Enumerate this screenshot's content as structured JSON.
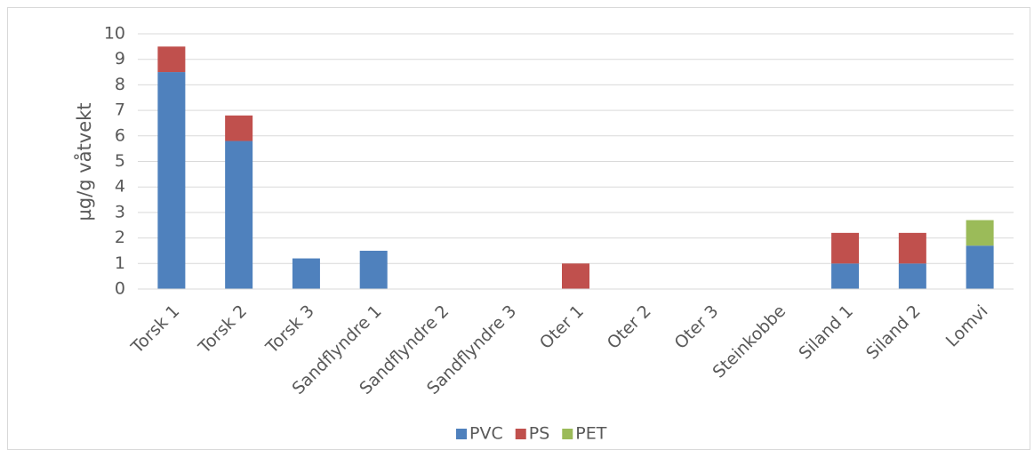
{
  "chart_data": {
    "type": "stacked_bar",
    "y_label": "µg/g våtvekt",
    "categories": [
      "Torsk 1",
      "Torsk 2",
      "Torsk 3",
      "Sandflyndre 1",
      "Sandflyndre 2",
      "Sandflyndre 3",
      "Oter 1",
      "Oter 2",
      "Oter 3",
      "Steinkobbe",
      "Siland 1",
      "Siland 2",
      "Lomvi"
    ],
    "series": [
      {
        "name": "PVC",
        "color": "#4f81bd",
        "values": [
          8.5,
          5.8,
          1.2,
          1.5,
          0,
          0,
          0,
          0,
          0,
          0,
          1.0,
          1.0,
          1.7
        ]
      },
      {
        "name": "PS",
        "color": "#c0504d",
        "values": [
          1.0,
          1.0,
          0,
          0,
          0,
          0,
          1.0,
          0,
          0,
          0,
          1.2,
          1.2,
          0
        ]
      },
      {
        "name": "PET",
        "color": "#9bbb59",
        "values": [
          0,
          0,
          0,
          0,
          0,
          0,
          0,
          0,
          0,
          0,
          0,
          0,
          1.0
        ]
      }
    ],
    "ylim": [
      0,
      10
    ],
    "yticks": [
      0,
      1,
      2,
      3,
      4,
      5,
      6,
      7,
      8,
      9,
      10
    ],
    "grid": true,
    "legend": "bottom"
  }
}
